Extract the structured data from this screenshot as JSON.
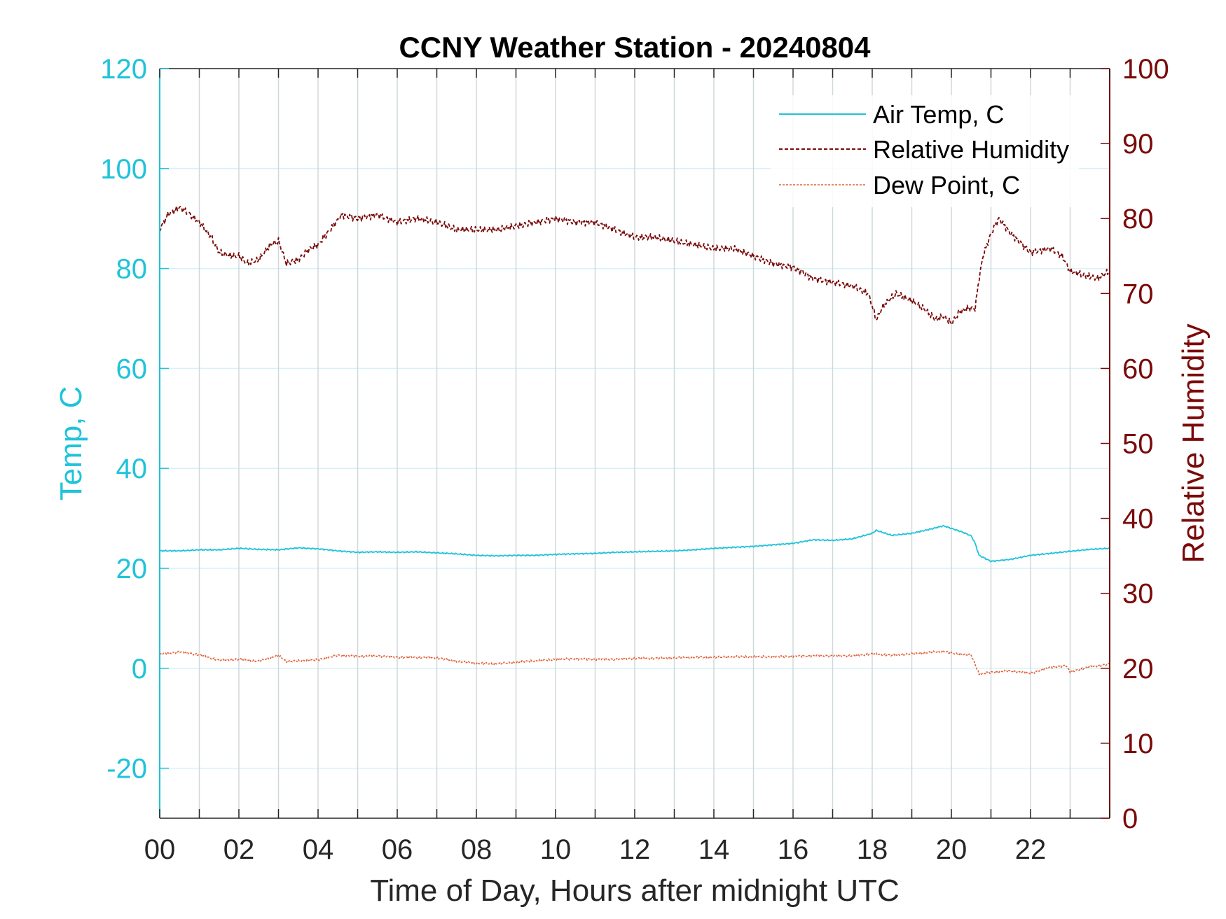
{
  "chart_data": {
    "type": "line",
    "title": "CCNY Weather Station - 20240804",
    "xlabel": "Time of Day, Hours after midnight UTC",
    "ylabel_left": "Temp, C",
    "ylabel_right": "Relative Humidity",
    "xlim": [
      0,
      24
    ],
    "ylim_left": [
      -30,
      120
    ],
    "ylim_right": [
      0,
      100
    ],
    "x_ticks": [
      0,
      2,
      4,
      6,
      8,
      10,
      12,
      14,
      16,
      18,
      20,
      22
    ],
    "x_tick_labels": [
      "00",
      "02",
      "04",
      "06",
      "08",
      "10",
      "12",
      "14",
      "16",
      "18",
      "20",
      "22"
    ],
    "y_ticks_left": [
      -20,
      0,
      20,
      40,
      60,
      80,
      100,
      120
    ],
    "y_tick_labels_left": [
      "-20",
      "0",
      "20",
      "40",
      "60",
      "80",
      "100",
      "120"
    ],
    "y_ticks_right": [
      0,
      10,
      20,
      30,
      40,
      50,
      60,
      70,
      80,
      90,
      100
    ],
    "y_tick_labels_right": [
      "0",
      "10",
      "20",
      "30",
      "40",
      "50",
      "60",
      "70",
      "80",
      "90",
      "100"
    ],
    "grid": true,
    "legend_position": "top-right",
    "colors": {
      "air_temp": "#1fc3da",
      "humidity": "#7a0a0a",
      "dew_point": "#e0623a",
      "left_axis": "#1fc3da",
      "right_axis": "#7a0a0a",
      "vgrid": "#d0d8dc",
      "hgrid": "#d6f2f7"
    },
    "series": [
      {
        "name": "Air Temp, C",
        "axis": "left",
        "style": "solid",
        "x": [
          0,
          0.5,
          1,
          1.5,
          2,
          2.5,
          3,
          3.5,
          4,
          4.5,
          5,
          5.5,
          6,
          6.5,
          7,
          7.5,
          8,
          8.5,
          9,
          9.5,
          10,
          10.5,
          11,
          11.5,
          12,
          12.5,
          13,
          13.5,
          14,
          14.5,
          15,
          15.5,
          16,
          16.5,
          17,
          17.5,
          18,
          18.1,
          18.5,
          19,
          19.5,
          19.8,
          20,
          20.3,
          20.5,
          20.6,
          20.7,
          21,
          21.5,
          22,
          22.5,
          23,
          23.5,
          24
        ],
        "y": [
          23.5,
          23.5,
          23.7,
          23.7,
          24.0,
          23.8,
          23.7,
          24.1,
          23.9,
          23.5,
          23.2,
          23.3,
          23.2,
          23.3,
          23.1,
          22.9,
          22.6,
          22.5,
          22.6,
          22.6,
          22.8,
          22.9,
          23.0,
          23.2,
          23.3,
          23.4,
          23.5,
          23.7,
          24.0,
          24.2,
          24.4,
          24.7,
          25.0,
          25.7,
          25.6,
          25.9,
          27.0,
          27.6,
          26.6,
          27.0,
          27.9,
          28.5,
          28.0,
          27.2,
          26.5,
          25.0,
          22.6,
          21.4,
          21.8,
          22.6,
          23.0,
          23.4,
          23.8,
          24.0
        ]
      },
      {
        "name": "Relative Humidity",
        "axis": "right",
        "style": "dashed",
        "x": [
          0,
          0.2,
          0.5,
          0.7,
          1,
          1.3,
          1.5,
          1.8,
          2,
          2.2,
          2.5,
          2.8,
          3,
          3.2,
          3.5,
          3.8,
          4,
          4.3,
          4.6,
          5,
          5.5,
          6,
          6.5,
          7,
          7.5,
          8,
          8.5,
          9,
          9.5,
          10,
          10.5,
          11,
          11.5,
          12,
          12.5,
          13,
          13.5,
          14,
          14.5,
          15,
          15.5,
          16,
          16.5,
          17,
          17.5,
          17.9,
          18.1,
          18.3,
          18.6,
          19,
          19.3,
          19.6,
          19.8,
          20,
          20.2,
          20.4,
          20.6,
          20.7,
          20.8,
          21,
          21.2,
          21.5,
          22,
          22.5,
          22.8,
          23,
          23.3,
          23.7,
          24
        ],
        "y": [
          78.5,
          80.5,
          81.5,
          80.8,
          79.5,
          77.5,
          75.5,
          75.0,
          75.0,
          74.0,
          74.5,
          76.5,
          77.0,
          74.0,
          74.5,
          76.0,
          76.5,
          78.5,
          80.5,
          80.0,
          80.5,
          79.5,
          80.0,
          79.5,
          78.5,
          78.5,
          78.5,
          79.0,
          79.5,
          80.0,
          79.5,
          79.5,
          78.5,
          77.5,
          77.5,
          77.0,
          76.5,
          76.0,
          76.0,
          75.0,
          74.0,
          73.5,
          72.0,
          71.5,
          71.0,
          70.0,
          66.5,
          68.5,
          70.0,
          69.0,
          68.0,
          66.5,
          67.0,
          66.0,
          67.5,
          68.0,
          68.0,
          72.0,
          75.0,
          78.0,
          80.0,
          78.0,
          75.5,
          76.0,
          75.0,
          73.0,
          72.5,
          72.0,
          73.0
        ]
      },
      {
        "name": "Dew Point, C",
        "axis": "left",
        "style": "dotted",
        "x": [
          0,
          0.5,
          1,
          1.5,
          2,
          2.5,
          3,
          3.2,
          3.5,
          4,
          4.5,
          5,
          5.5,
          6,
          6.5,
          7,
          7.5,
          8,
          8.5,
          9,
          9.5,
          10,
          10.5,
          11,
          11.5,
          12,
          12.5,
          13,
          13.5,
          14,
          14.5,
          15,
          15.5,
          16,
          16.5,
          17,
          17.5,
          18,
          18.5,
          19,
          19.5,
          19.8,
          20,
          20.3,
          20.5,
          20.6,
          20.7,
          21,
          21.5,
          22,
          22.5,
          22.9,
          23,
          23.5,
          24
        ],
        "y": [
          2.8,
          3.3,
          2.7,
          1.6,
          1.8,
          1.4,
          2.6,
          1.3,
          1.5,
          1.7,
          2.6,
          2.4,
          2.5,
          2.2,
          2.2,
          2.1,
          1.4,
          1.0,
          0.9,
          1.2,
          1.5,
          1.8,
          1.9,
          1.8,
          1.8,
          2.0,
          2.0,
          2.1,
          2.2,
          2.2,
          2.3,
          2.3,
          2.3,
          2.4,
          2.5,
          2.5,
          2.5,
          2.9,
          2.6,
          2.9,
          3.2,
          3.4,
          3.0,
          2.8,
          2.6,
          0.8,
          -1.2,
          -0.8,
          -0.5,
          -1.0,
          0.2,
          0.5,
          -0.7,
          0.3,
          0.8
        ]
      }
    ]
  }
}
